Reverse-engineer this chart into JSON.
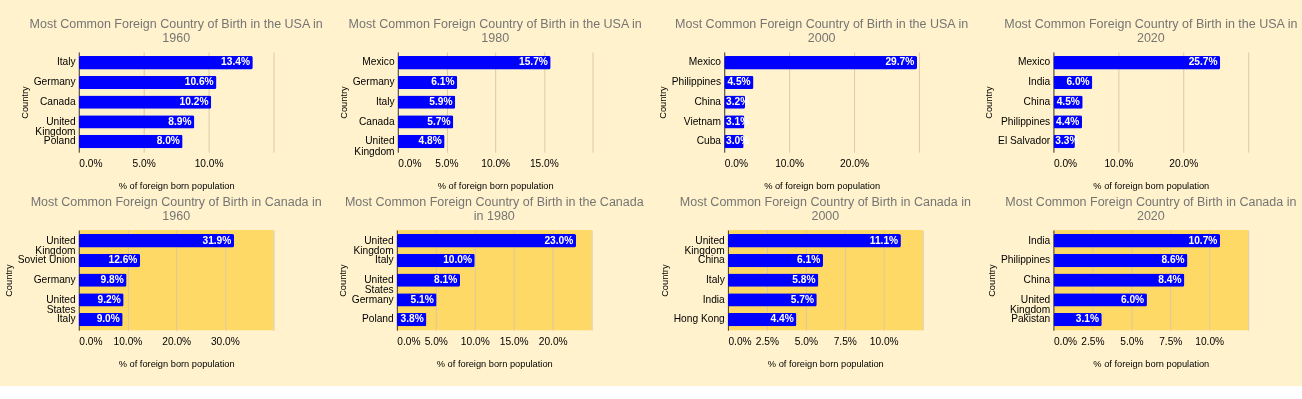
{
  "chart_data": [
    {
      "type": "bar",
      "orientation": "horizontal",
      "title": "Most Common Foreign Country of Birth in the USA in 1960",
      "xlabel": "% of foreign born population",
      "ylabel": "Country",
      "categories": [
        "Italy",
        "Germany",
        "Canada",
        "United Kingdom",
        "Poland"
      ],
      "values": [
        13.4,
        10.6,
        10.2,
        8.9,
        8.0
      ],
      "value_labels": [
        "13.4%",
        "10.6%",
        "10.2%",
        "8.9%",
        "8.0%"
      ],
      "color": "#0000ff",
      "xlim": [
        0,
        15
      ],
      "xticks": [
        {
          "value": 0,
          "label": "0.0%"
        },
        {
          "value": 5,
          "label": "5.0%"
        },
        {
          "value": 10,
          "label": "10.0%"
        },
        {
          "value": 15,
          "label": null
        }
      ],
      "grid": "x"
    },
    {
      "type": "bar",
      "orientation": "horizontal",
      "title": "Most Common Foreign Country of Birth in the USA in 1980",
      "xlabel": "% of foreign born population",
      "ylabel": "Country",
      "categories": [
        "Mexico",
        "Germany",
        "Italy",
        "Canada",
        "United Kingdom"
      ],
      "values": [
        15.7,
        6.1,
        5.9,
        5.7,
        4.8
      ],
      "value_labels": [
        "15.7%",
        "6.1%",
        "5.9%",
        "5.7%",
        "4.8%"
      ],
      "color": "#0000ff",
      "xlim": [
        0,
        20
      ],
      "xticks": [
        {
          "value": 0,
          "label": "0.0%"
        },
        {
          "value": 5,
          "label": "5.0%"
        },
        {
          "value": 10,
          "label": "10.0%"
        },
        {
          "value": 15,
          "label": "15.0%"
        },
        {
          "value": 20,
          "label": null
        }
      ],
      "grid": "x"
    },
    {
      "type": "bar",
      "orientation": "horizontal",
      "title": "Most Common Foreign Country of Birth in the USA in 2000",
      "xlabel": "% of foreign born population",
      "ylabel": "Country",
      "categories": [
        "Mexico",
        "Philippines",
        "China",
        "Vietnam",
        "Cuba"
      ],
      "values": [
        29.7,
        4.5,
        3.2,
        3.1,
        3.0
      ],
      "value_labels": [
        "29.7%",
        "4.5%",
        "3.2%",
        "3.1%",
        "3.0%"
      ],
      "color": "#0000ff",
      "xlim": [
        0,
        30
      ],
      "xticks": [
        {
          "value": 0,
          "label": "0.0%"
        },
        {
          "value": 10,
          "label": "10.0%"
        },
        {
          "value": 20,
          "label": "20.0%"
        },
        {
          "value": 30,
          "label": null
        }
      ],
      "grid": "x"
    },
    {
      "type": "bar",
      "orientation": "horizontal",
      "title": "Most Common Foreign Country of Birth in the USA in 2020",
      "xlabel": "% of foreign born population",
      "ylabel": "Country",
      "categories": [
        "Mexico",
        "India",
        "China",
        "Philippines",
        "El Salvador"
      ],
      "values": [
        25.7,
        6.0,
        4.5,
        4.4,
        3.3
      ],
      "value_labels": [
        "25.7%",
        "6.0%",
        "4.5%",
        "4.4%",
        "3.3%"
      ],
      "color": "#0000ff",
      "xlim": [
        0,
        30
      ],
      "xticks": [
        {
          "value": 0,
          "label": "0.0%"
        },
        {
          "value": 10,
          "label": "10.0%"
        },
        {
          "value": 20,
          "label": "20.0%"
        },
        {
          "value": 30,
          "label": null
        }
      ],
      "grid": "x"
    },
    {
      "type": "bar",
      "orientation": "horizontal",
      "title": "Most Common Foreign Country of Birth in Canada in 1960",
      "xlabel": "% of foreign born population",
      "ylabel": "Country",
      "categories": [
        "United Kingdom",
        "Soviet Union",
        "Germany",
        "United States",
        "Italy"
      ],
      "values": [
        31.9,
        12.6,
        9.8,
        9.2,
        9.0
      ],
      "value_labels": [
        "31.9%",
        "12.6%",
        "9.8%",
        "9.2%",
        "9.0%"
      ],
      "color": "#0000ff",
      "xlim": [
        0,
        40
      ],
      "xticks": [
        {
          "value": 0,
          "label": "0.0%"
        },
        {
          "value": 10,
          "label": "10.0%"
        },
        {
          "value": 20,
          "label": "20.0%"
        },
        {
          "value": 30,
          "label": "30.0%"
        },
        {
          "value": 40,
          "label": null
        }
      ],
      "grid": "x"
    },
    {
      "type": "bar",
      "orientation": "horizontal",
      "title": "Most Common Foreign Country of Birth in the Canada in 1980",
      "xlabel": "% of foreign born population",
      "ylabel": "Country",
      "categories": [
        "United Kingdom",
        "Italy",
        "United States",
        "Germany",
        "Poland"
      ],
      "values": [
        23.0,
        10.0,
        8.1,
        5.1,
        3.8
      ],
      "value_labels": [
        "23.0%",
        "10.0%",
        "8.1%",
        "5.1%",
        "3.8%"
      ],
      "color": "#0000ff",
      "xlim": [
        0,
        25
      ],
      "xticks": [
        {
          "value": 0,
          "label": "0.0%"
        },
        {
          "value": 5,
          "label": "5.0%"
        },
        {
          "value": 10,
          "label": "10.0%"
        },
        {
          "value": 15,
          "label": "15.0%"
        },
        {
          "value": 20,
          "label": "20.0%"
        },
        {
          "value": 25,
          "label": null
        }
      ],
      "grid": "x"
    },
    {
      "type": "bar",
      "orientation": "horizontal",
      "title": "Most Common Foreign Country of Birth in Canada in 2000",
      "xlabel": "% of foreign born population",
      "ylabel": "Country",
      "categories": [
        "United Kingdom",
        "China",
        "Italy",
        "India",
        "Hong Kong"
      ],
      "values": [
        11.1,
        6.1,
        5.8,
        5.7,
        4.4
      ],
      "value_labels": [
        "11.1%",
        "6.1%",
        "5.8%",
        "5.7%",
        "4.4%"
      ],
      "color": "#0000ff",
      "xlim": [
        0,
        12.5
      ],
      "xticks": [
        {
          "value": 0,
          "label": "0.0%"
        },
        {
          "value": 2.5,
          "label": "2.5%"
        },
        {
          "value": 5,
          "label": "5.0%"
        },
        {
          "value": 7.5,
          "label": "7.5%"
        },
        {
          "value": 10,
          "label": "10.0%"
        },
        {
          "value": 12.5,
          "label": null
        }
      ],
      "grid": "x"
    },
    {
      "type": "bar",
      "orientation": "horizontal",
      "title": "Most Common Foreign Country of Birth in Canada in 2020",
      "xlabel": "% of foreign born population",
      "ylabel": "Country",
      "categories": [
        "India",
        "Philippines",
        "China",
        "United Kingdom",
        "Pakistan"
      ],
      "values": [
        10.7,
        8.6,
        8.4,
        6.0,
        3.1
      ],
      "value_labels": [
        "10.7%",
        "8.6%",
        "8.4%",
        "6.0%",
        "3.1%"
      ],
      "color": "#0000ff",
      "xlim": [
        0,
        12.5
      ],
      "xticks": [
        {
          "value": 0,
          "label": "0.0%"
        },
        {
          "value": 2.5,
          "label": "2.5%"
        },
        {
          "value": 5,
          "label": "5.0%"
        },
        {
          "value": 7.5,
          "label": "7.5%"
        },
        {
          "value": 10,
          "label": "10.0%"
        },
        {
          "value": 12.5,
          "label": null
        }
      ],
      "grid": "x"
    }
  ]
}
